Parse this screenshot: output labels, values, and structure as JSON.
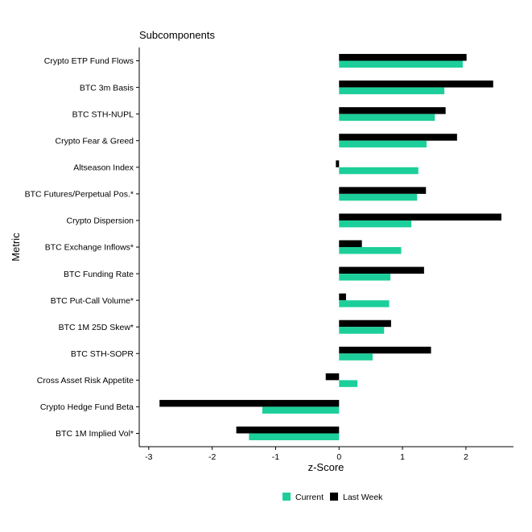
{
  "chart_data": {
    "type": "bar",
    "orientation": "horizontal",
    "title": "Subcomponents",
    "xlabel": "z-Score",
    "ylabel": "Metric",
    "xlim": [
      -3.15,
      2.75
    ],
    "xticks": [
      -3,
      -2,
      -1,
      0,
      1,
      2
    ],
    "grid": false,
    "legend_position": "bottom",
    "categories": [
      "Crypto ETP Fund Flows",
      "BTC 3m Basis",
      "BTC STH-NUPL",
      "Crypto Fear & Greed",
      "Altseason Index",
      "BTC Futures/Perpetual Pos.*",
      "Crypto Dispersion",
      "BTC Exchange Inflows*",
      "BTC Funding Rate",
      "BTC Put-Call Volume*",
      "BTC 1M 25D Skew*",
      "BTC STH-SOPR",
      "Cross Asset Risk Appetite",
      "Crypto Hedge Fund Beta",
      "BTC 1M Implied Vol*"
    ],
    "series": [
      {
        "name": "Current",
        "color": "#1ccf9a",
        "values": [
          1.95,
          1.66,
          1.51,
          1.38,
          1.25,
          1.23,
          1.14,
          0.98,
          0.81,
          0.79,
          0.71,
          0.53,
          0.29,
          -1.21,
          -1.42
        ]
      },
      {
        "name": "Last Week",
        "color": "#000000",
        "values": [
          2.01,
          2.43,
          1.68,
          1.86,
          -0.05,
          1.37,
          2.56,
          0.36,
          1.34,
          0.11,
          0.82,
          1.45,
          -0.21,
          -2.83,
          -1.62
        ]
      }
    ]
  }
}
